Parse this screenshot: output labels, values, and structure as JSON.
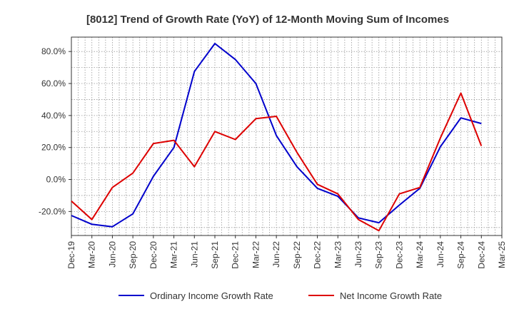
{
  "chart_data": {
    "type": "line",
    "title": "[8012]  Trend of Growth Rate (YoY) of 12-Month Moving Sum of Incomes",
    "xlabel": "",
    "ylabel": "",
    "x_ticks": [
      "Dec-19",
      "Mar-20",
      "Jun-20",
      "Sep-20",
      "Dec-20",
      "Mar-21",
      "Jun-21",
      "Sep-21",
      "Dec-21",
      "Mar-22",
      "Jun-22",
      "Sep-22",
      "Dec-22",
      "Mar-23",
      "Jun-23",
      "Sep-23",
      "Dec-23",
      "Mar-24",
      "Jun-24",
      "Sep-24",
      "Dec-24",
      "Mar-25"
    ],
    "y_ticks": [
      {
        "value": 80,
        "label": "80.0%"
      },
      {
        "value": 60,
        "label": "60.0%"
      },
      {
        "value": 40,
        "label": "40.0%"
      },
      {
        "value": 20,
        "label": "20.0%"
      },
      {
        "value": 0,
        "label": "0.0%"
      },
      {
        "value": -20,
        "label": "-20.0%"
      }
    ],
    "ylim": [
      -35,
      89
    ],
    "grid": true,
    "legend_position": "bottom",
    "series": [
      {
        "name": "Ordinary Income Growth Rate",
        "color": "#0000cc",
        "x": [
          "Dec-19",
          "Mar-20",
          "Jun-20",
          "Sep-20",
          "Dec-20",
          "Mar-21",
          "Jun-21",
          "Sep-21",
          "Dec-21",
          "Mar-22",
          "Jun-22",
          "Sep-22",
          "Dec-22",
          "Mar-23",
          "Jun-23",
          "Sep-23",
          "Dec-23",
          "Mar-24",
          "Jun-24",
          "Sep-24",
          "Dec-24"
        ],
        "values": [
          -22.5,
          -28.0,
          -29.5,
          -21.5,
          2.0,
          20.0,
          67.5,
          85.0,
          75.0,
          60.0,
          27.5,
          8.0,
          -5.5,
          -10.5,
          -24.0,
          -27.0,
          -16.0,
          -5.5,
          20.5,
          38.5,
          35.0
        ]
      },
      {
        "name": "Net Income Growth Rate",
        "color": "#dd0000",
        "x": [
          "Dec-19",
          "Mar-20",
          "Jun-20",
          "Sep-20",
          "Dec-20",
          "Mar-21",
          "Jun-21",
          "Sep-21",
          "Dec-21",
          "Mar-22",
          "Jun-22",
          "Sep-22",
          "Dec-22",
          "Mar-23",
          "Jun-23",
          "Sep-23",
          "Dec-23",
          "Mar-24",
          "Jun-24",
          "Sep-24",
          "Dec-24"
        ],
        "values": [
          -13.5,
          -25.0,
          -5.0,
          4.0,
          22.5,
          24.5,
          8.0,
          30.0,
          25.0,
          38.0,
          39.5,
          17.0,
          -3.0,
          -9.0,
          -25.0,
          -32.0,
          -9.0,
          -5.0,
          26.0,
          54.0,
          21.0
        ]
      }
    ]
  }
}
